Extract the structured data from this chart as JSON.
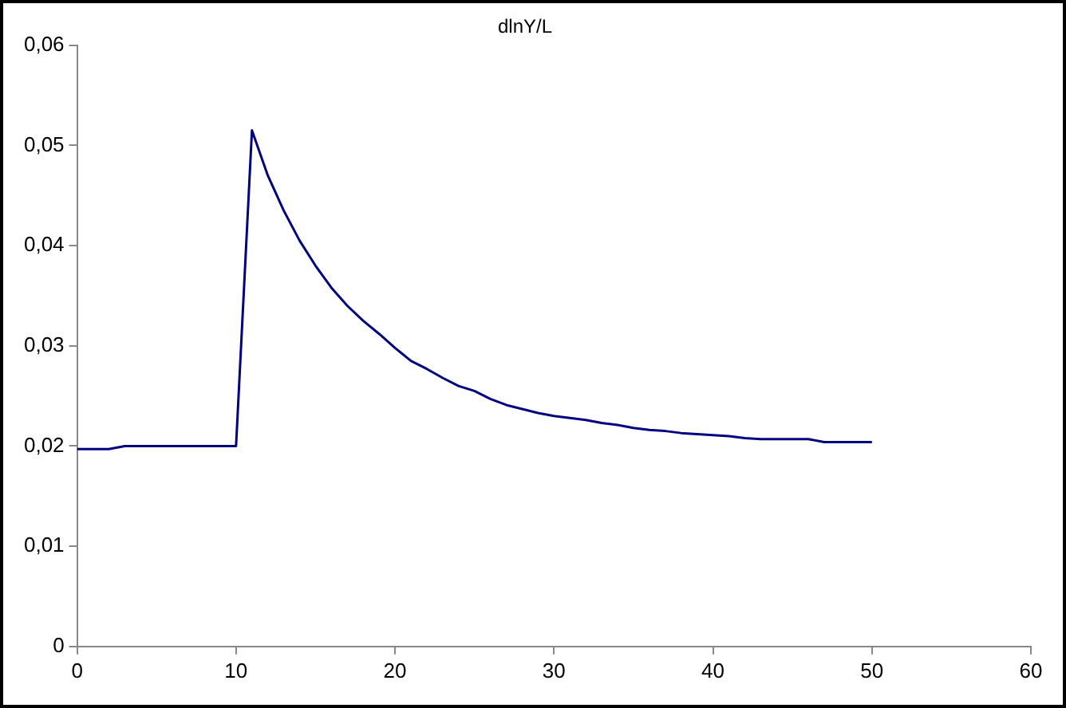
{
  "chart_data": {
    "type": "line",
    "title": "dlnY/L",
    "x": [
      0,
      1,
      2,
      3,
      4,
      5,
      6,
      7,
      8,
      9,
      10,
      11,
      12,
      13,
      14,
      15,
      16,
      17,
      18,
      19,
      20,
      21,
      22,
      23,
      24,
      25,
      26,
      27,
      28,
      29,
      30,
      31,
      32,
      33,
      34,
      35,
      36,
      37,
      38,
      39,
      40,
      41,
      42,
      43,
      44,
      45,
      46,
      47,
      48,
      49,
      50
    ],
    "series": [
      {
        "color": "#000080",
        "values": [
          0.0197,
          0.0197,
          0.0197,
          0.02,
          0.02,
          0.02,
          0.02,
          0.02,
          0.02,
          0.02,
          0.02,
          0.0515,
          0.047,
          0.0435,
          0.0405,
          0.038,
          0.0358,
          0.034,
          0.0325,
          0.0312,
          0.0298,
          0.0285,
          0.0277,
          0.0268,
          0.026,
          0.0255,
          0.0247,
          0.0241,
          0.0237,
          0.0233,
          0.023,
          0.0228,
          0.0226,
          0.0223,
          0.0221,
          0.0218,
          0.0216,
          0.0215,
          0.0213,
          0.0212,
          0.0211,
          0.021,
          0.0208,
          0.0207,
          0.0207,
          0.0207,
          0.0207,
          0.0204,
          0.0204,
          0.0204,
          0.0204
        ]
      }
    ],
    "xlim": [
      0,
      60
    ],
    "xticks": [
      0,
      10,
      20,
      30,
      40,
      50,
      60
    ],
    "ylim": [
      0,
      0.06
    ],
    "yticks": [
      0,
      {
        "value": 0.01,
        "label": "0,01"
      },
      {
        "value": 0.02,
        "label": "0,02"
      },
      {
        "value": 0.03,
        "label": "0,03"
      },
      {
        "value": 0.04,
        "label": "0,04"
      },
      {
        "value": 0.05,
        "label": "0,05"
      },
      {
        "value": 0.06,
        "label": "0,06"
      }
    ],
    "grid": false,
    "legend": false,
    "marker": "none",
    "line_style": "solid"
  }
}
